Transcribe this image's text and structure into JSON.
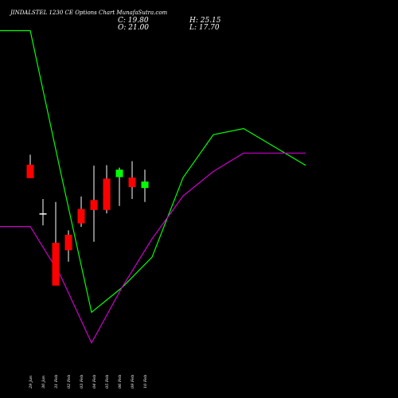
{
  "header": {
    "title": "JINDALSTEL 1230 CE Options Chart MunafaSutra.com",
    "close_label": "C: 19.80",
    "open_label": "O: 21.00",
    "high_label": "H: 25.15",
    "low_label": "L: 17.70"
  },
  "colors": {
    "background": "#000000",
    "up": "#00ff00",
    "down": "#ff0000",
    "doji": "#ffffff",
    "upper_band": "#00ff00",
    "lower_band": "#cc00cc",
    "text": "#ffffff"
  },
  "chart_data": [
    {
      "type": "line",
      "title": "",
      "x": [
        "",
        "29 Jan",
        "30 Jan",
        "31 Feb",
        "02 Feb",
        "03 Feb",
        "04 Feb",
        "05 Feb",
        "06 Feb",
        "09 Feb",
        "10 Feb"
      ],
      "series": [
        {
          "values": [
            100,
            100,
            77,
            54,
            58,
            63,
            76,
            83,
            84,
            81,
            78
          ]
        },
        {
          "values": [
            68,
            68,
            60,
            49,
            58,
            66,
            73,
            77,
            80,
            80,
            80
          ]
        }
      ],
      "ylim": [
        40,
        105
      ]
    },
    {
      "type": "candlestick",
      "title": "",
      "categories": [
        "29 Jan",
        "30 Jan",
        "31 Feb",
        "02 Feb",
        "03 Feb",
        "04 Feb",
        "05 Feb",
        "06 Feb",
        "09 Feb",
        "10 Feb"
      ],
      "open": [
        46.9,
        37.0,
        31.2,
        32.8,
        38.0,
        39.8,
        44.1,
        44.4,
        44.3,
        42.2
      ],
      "high": [
        48.9,
        40.0,
        39.4,
        33.7,
        40.5,
        46.7,
        46.8,
        46.3,
        47.6,
        45.9
      ],
      "low": [
        44.4,
        34.7,
        22.9,
        27.4,
        34.4,
        31.4,
        37.1,
        38.6,
        40.0,
        39.4
      ],
      "close": [
        44.2,
        37.0,
        22.6,
        29.7,
        35.1,
        37.8,
        37.8,
        45.9,
        42.4,
        43.5
      ],
      "ylim": [
        0,
        80
      ]
    }
  ]
}
